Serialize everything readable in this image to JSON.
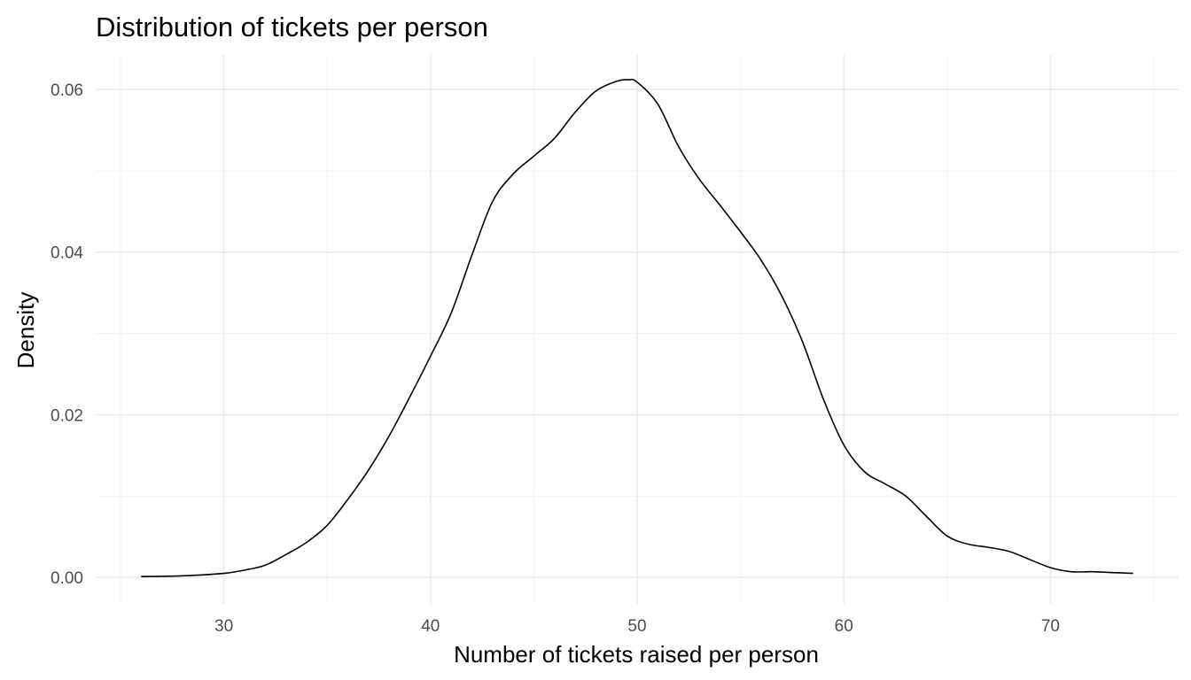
{
  "chart_data": {
    "type": "line",
    "title": "Distribution of tickets per person",
    "xlabel": "Number of tickets raised per person",
    "ylabel": "Density",
    "xlim": [
      23.8,
      76.2
    ],
    "ylim": [
      -0.00325,
      0.06425
    ],
    "x_ticks": [
      30,
      40,
      50,
      60,
      70
    ],
    "x_tick_labels": [
      "30",
      "40",
      "50",
      "60",
      "70"
    ],
    "y_ticks": [
      0.0,
      0.02,
      0.04,
      0.06
    ],
    "y_tick_labels": [
      "0.00",
      "0.02",
      "0.04",
      "0.06"
    ],
    "grid": true,
    "series": [
      {
        "line_color": "#000000",
        "x": [
          26,
          28,
          30,
          31,
          32,
          33,
          34,
          35,
          36,
          37,
          38,
          39,
          40,
          41,
          42,
          43,
          44,
          45,
          46,
          47,
          48,
          49,
          49.6,
          50,
          51,
          52,
          53,
          54,
          55,
          56,
          57,
          58,
          59,
          60,
          61,
          62,
          63,
          64,
          65,
          66,
          67,
          68,
          69,
          70,
          71,
          72,
          73,
          74
        ],
        "y": [
          0.0001,
          0.0002,
          0.0005,
          0.0009,
          0.0015,
          0.0028,
          0.0043,
          0.0064,
          0.0096,
          0.0132,
          0.0174,
          0.0222,
          0.0272,
          0.0325,
          0.0396,
          0.0462,
          0.0496,
          0.0518,
          0.054,
          0.0572,
          0.0598,
          0.061,
          0.0612,
          0.0609,
          0.0582,
          0.053,
          0.049,
          0.0458,
          0.0425,
          0.039,
          0.0346,
          0.029,
          0.022,
          0.0163,
          0.013,
          0.0115,
          0.01,
          0.0075,
          0.0051,
          0.0041,
          0.0037,
          0.0032,
          0.0022,
          0.0012,
          0.0007,
          0.0007,
          0.0006,
          0.0005
        ]
      }
    ]
  }
}
